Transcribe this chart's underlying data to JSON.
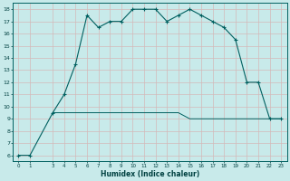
{
  "xlabel": "Humidex (Indice chaleur)",
  "bg_color": "#c8eaea",
  "grid_color": "#d4b8b8",
  "line_color": "#006060",
  "curve1_x": [
    0,
    1,
    3,
    4,
    5,
    6,
    7,
    8,
    9,
    10,
    11,
    12,
    13,
    14,
    15,
    16,
    17,
    18,
    19,
    20,
    21,
    22,
    23
  ],
  "curve1_y": [
    6,
    6,
    9.5,
    11,
    13.5,
    17.5,
    16.5,
    17,
    17,
    18,
    18,
    18,
    17,
    17.5,
    18,
    17.5,
    17,
    16.5,
    15.5,
    12,
    12,
    9,
    9
  ],
  "curve2_x": [
    3,
    4,
    5,
    6,
    7,
    8,
    9,
    10,
    11,
    12,
    13,
    14,
    15,
    16,
    17,
    18,
    19,
    20,
    21,
    22,
    23
  ],
  "curve2_y": [
    9.5,
    9.5,
    9.5,
    9.5,
    9.5,
    9.5,
    9.5,
    9.5,
    9.5,
    9.5,
    9.5,
    9.5,
    9,
    9,
    9,
    9,
    9,
    9,
    9,
    9,
    9
  ],
  "xlim": [
    -0.5,
    23.5
  ],
  "ylim": [
    5.5,
    18.5
  ],
  "yticks": [
    6,
    7,
    8,
    9,
    10,
    11,
    12,
    13,
    14,
    15,
    16,
    17,
    18
  ],
  "xticks": [
    0,
    1,
    3,
    4,
    5,
    6,
    7,
    8,
    9,
    10,
    11,
    12,
    13,
    14,
    15,
    16,
    17,
    18,
    19,
    20,
    21,
    22,
    23
  ]
}
